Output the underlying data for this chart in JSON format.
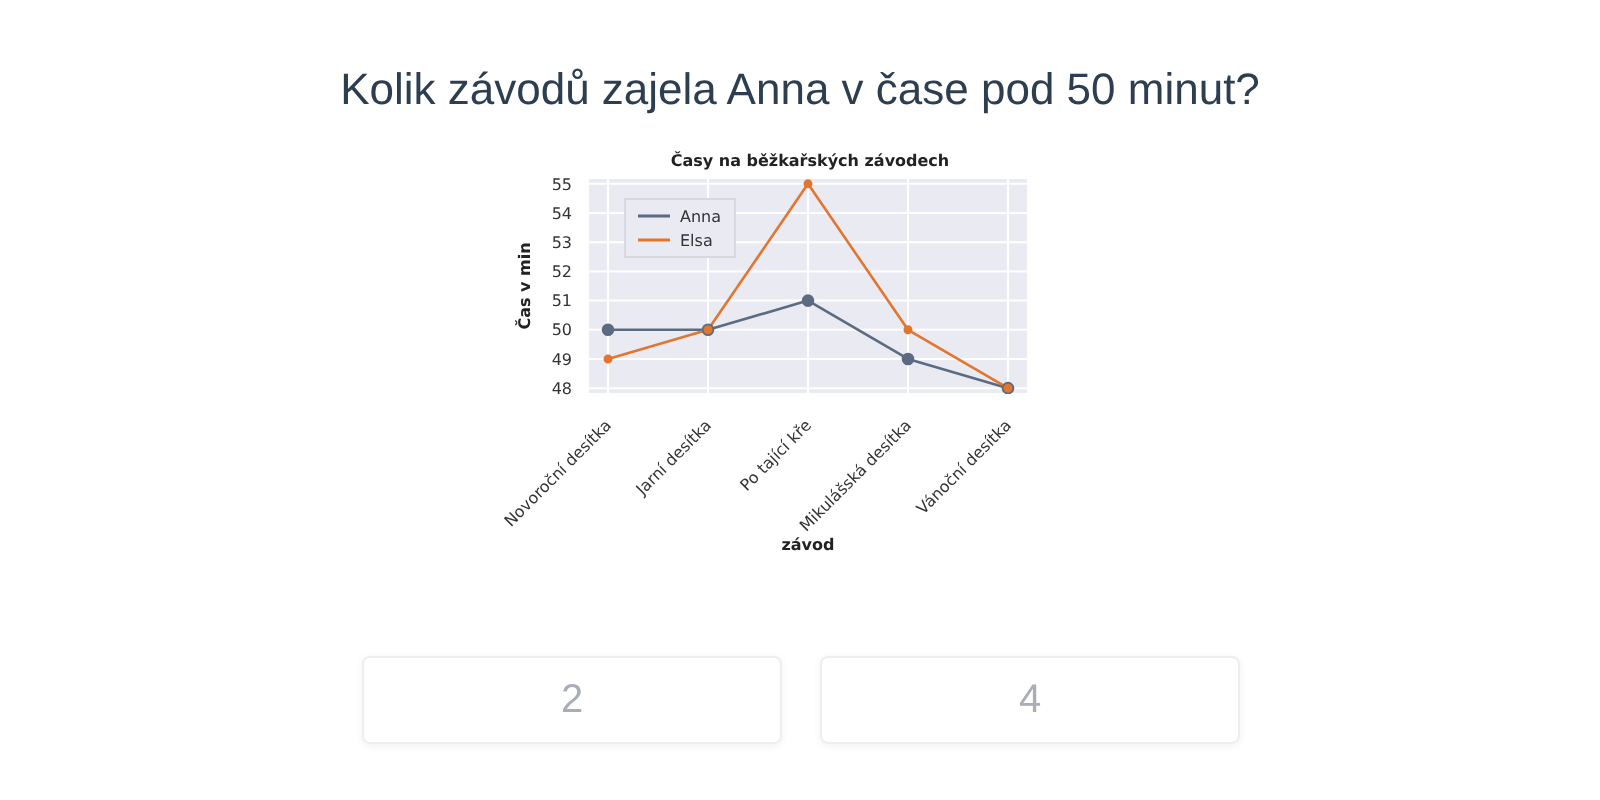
{
  "chart_data": {
    "type": "line",
    "title": "Kolik závodů zajela Anna v čase pod 50 minut?",
    "subtitle": "Časy na běžkařských závodech",
    "xlabel": "závod",
    "ylabel": "Čas v min",
    "categories": [
      "Novoroční desítka",
      "Jarní desítka",
      "Po tající kře",
      "Mikulášská desítka",
      "Vánoční desítka"
    ],
    "series": [
      {
        "name": "Anna",
        "color": "#5b6b82",
        "values": [
          50,
          50,
          51,
          49,
          48
        ]
      },
      {
        "name": "Elsa",
        "color": "#e0762f",
        "values": [
          49,
          50,
          55,
          50,
          48
        ]
      }
    ],
    "ylim": [
      47.8,
      55.2
    ],
    "yticks": [
      48,
      49,
      50,
      51,
      52,
      53,
      54,
      55
    ],
    "grid": true,
    "legend": "top left",
    "marker": "circle",
    "line_style": "solid",
    "annotations": [
      "2",
      "4"
    ]
  }
}
